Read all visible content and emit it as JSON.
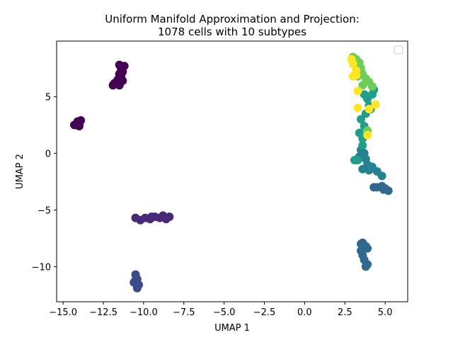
{
  "chart_data": {
    "type": "scatter",
    "title_lines": [
      "Uniform Manifold Approximation and Projection:",
      "1078 cells with 10 subtypes"
    ],
    "xlabel": "UMAP 1",
    "ylabel": "UMAP 2",
    "xlim": [
      -15.4,
      6.4
    ],
    "ylim": [
      -13.1,
      9.9
    ],
    "xticks": [
      -15.0,
      -12.5,
      -10.0,
      -7.5,
      -5.0,
      -2.5,
      0.0,
      2.5,
      5.0
    ],
    "xtick_labels": [
      "−15.0",
      "−12.5",
      "−10.0",
      "−7.5",
      "−5.0",
      "−2.5",
      "0.0",
      "2.5",
      "5.0"
    ],
    "yticks": [
      -10,
      -5,
      0,
      5
    ],
    "ytick_labels": [
      "−10",
      "−5",
      "0",
      "5"
    ],
    "legend": "top-right (empty)",
    "grid": false,
    "colormap": "viridis",
    "clusters": [
      {
        "id": "cluster-1",
        "color": "#440154",
        "points": [
          [
            -11.5,
            7.8
          ],
          [
            -11.4,
            7.5
          ],
          [
            -11.3,
            7.2
          ],
          [
            -11.5,
            7.0
          ],
          [
            -11.4,
            6.8
          ],
          [
            -11.6,
            6.5
          ],
          [
            -11.3,
            6.4
          ],
          [
            -11.7,
            6.2
          ],
          [
            -11.9,
            6.0
          ],
          [
            -11.5,
            6.0
          ],
          [
            -11.8,
            6.2
          ],
          [
            -11.2,
            7.7
          ]
        ]
      },
      {
        "id": "cluster-2",
        "color": "#440154",
        "points": [
          [
            -14.2,
            2.5
          ],
          [
            -14.0,
            2.6
          ],
          [
            -13.9,
            2.9
          ],
          [
            -14.1,
            2.8
          ],
          [
            -14.3,
            2.5
          ],
          [
            -14.0,
            2.4
          ]
        ]
      },
      {
        "id": "cluster-3",
        "color": "#482878",
        "points": [
          [
            -10.5,
            -5.7
          ],
          [
            -10.2,
            -5.9
          ],
          [
            -9.9,
            -5.7
          ],
          [
            -9.6,
            -5.8
          ],
          [
            -9.3,
            -5.6
          ],
          [
            -9.0,
            -5.7
          ],
          [
            -8.8,
            -5.5
          ],
          [
            -8.6,
            -5.8
          ],
          [
            -8.4,
            -5.6
          ],
          [
            -9.5,
            -5.6
          ]
        ]
      },
      {
        "id": "cluster-4",
        "color": "#3e4989",
        "points": [
          [
            -10.5,
            -10.7
          ],
          [
            -10.4,
            -11.1
          ],
          [
            -10.6,
            -11.4
          ],
          [
            -10.3,
            -11.6
          ],
          [
            -10.4,
            -11.9
          ],
          [
            -10.5,
            -11.2
          ]
        ]
      },
      {
        "id": "cluster-5",
        "color": "#31688e",
        "points": [
          [
            4.5,
            -3.0
          ],
          [
            4.8,
            -2.9
          ],
          [
            5.0,
            -3.1
          ],
          [
            5.2,
            -3.3
          ],
          [
            4.3,
            -3.0
          ],
          [
            4.9,
            -3.2
          ]
        ]
      },
      {
        "id": "cluster-6",
        "color": "#31688e",
        "points": [
          [
            3.6,
            -7.9
          ],
          [
            3.8,
            -8.2
          ],
          [
            3.5,
            -8.6
          ],
          [
            3.9,
            -8.4
          ],
          [
            3.6,
            -9.0
          ],
          [
            3.7,
            -9.4
          ],
          [
            3.9,
            -9.8
          ],
          [
            3.8,
            -10.0
          ],
          [
            3.5,
            -8.0
          ]
        ]
      },
      {
        "id": "cluster-7",
        "color": "#26828e",
        "points": [
          [
            3.9,
            -1.0
          ],
          [
            4.2,
            -1.2
          ],
          [
            4.5,
            -1.6
          ],
          [
            4.8,
            -2.0
          ],
          [
            3.6,
            -1.4
          ],
          [
            4.0,
            -1.5
          ],
          [
            3.5,
            0.3
          ],
          [
            3.7,
            0.0
          ],
          [
            3.4,
            -0.3
          ],
          [
            3.8,
            -0.5
          ]
        ]
      },
      {
        "id": "cluster-8",
        "color": "#1f9e89",
        "points": [
          [
            3.6,
            1.3
          ],
          [
            3.4,
            1.8
          ],
          [
            3.7,
            2.4
          ],
          [
            3.5,
            3.0
          ],
          [
            3.8,
            3.5
          ],
          [
            3.6,
            0.7
          ],
          [
            4.0,
            4.2
          ],
          [
            3.9,
            4.8
          ],
          [
            4.2,
            5.2
          ],
          [
            4.3,
            5.6
          ],
          [
            3.7,
            5.2
          ],
          [
            4.1,
            3.9
          ],
          [
            3.3,
            -0.6
          ],
          [
            3.1,
            -0.6
          ]
        ]
      },
      {
        "id": "cluster-9",
        "color": "#6ece58",
        "points": [
          [
            3.0,
            8.5
          ],
          [
            3.2,
            8.3
          ],
          [
            3.4,
            8.0
          ],
          [
            3.5,
            7.5
          ],
          [
            3.6,
            7.0
          ],
          [
            3.8,
            6.6
          ],
          [
            4.0,
            6.3
          ],
          [
            4.2,
            5.9
          ],
          [
            3.3,
            6.8
          ],
          [
            3.1,
            7.8
          ],
          [
            3.6,
            6.0
          ],
          [
            3.9,
            2.0
          ]
        ]
      },
      {
        "id": "cluster-10",
        "color": "#fde725",
        "points": [
          [
            2.9,
            8.3
          ],
          [
            3.0,
            7.9
          ],
          [
            3.2,
            6.9
          ],
          [
            3.3,
            5.5
          ],
          [
            3.3,
            4.0
          ],
          [
            4.0,
            3.9
          ],
          [
            3.9,
            1.6
          ],
          [
            3.2,
            7.3
          ],
          [
            3.0,
            6.8
          ],
          [
            4.4,
            4.3
          ]
        ]
      }
    ]
  }
}
